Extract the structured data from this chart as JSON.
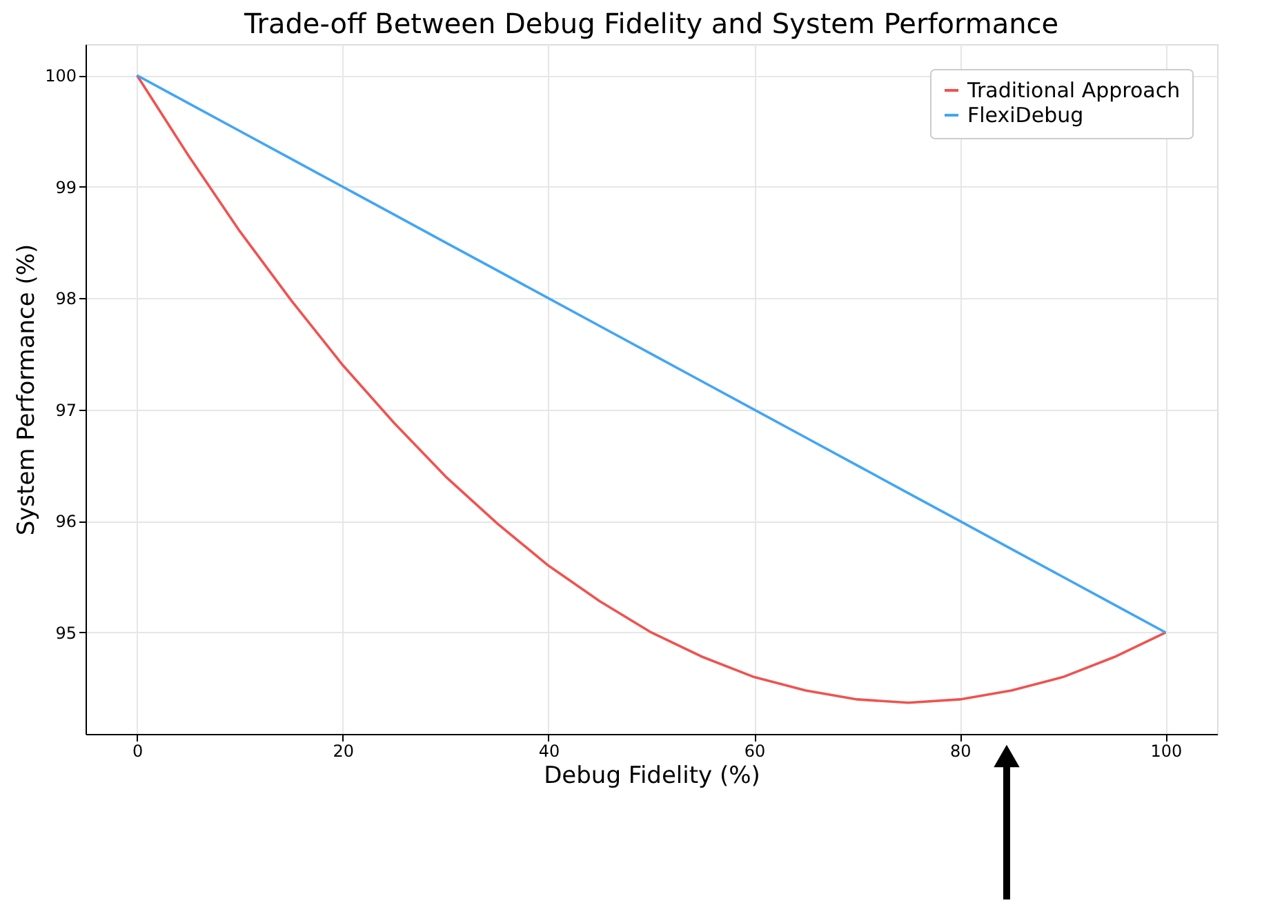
{
  "chart_data": {
    "type": "line",
    "title": "Trade-off Between Debug Fidelity and System Performance",
    "xlabel": "Debug Fidelity (%)",
    "ylabel": "System Performance (%)",
    "x": [
      0,
      5,
      10,
      15,
      20,
      25,
      30,
      35,
      40,
      45,
      50,
      55,
      60,
      65,
      70,
      75,
      80,
      85,
      90,
      95,
      100
    ],
    "series": [
      {
        "name": "Traditional Approach",
        "color": "#ef5350",
        "values": [
          100,
          99.28,
          98.6,
          97.98,
          97.4,
          96.88,
          96.4,
          95.98,
          95.6,
          95.28,
          95.0,
          94.78,
          94.6,
          94.48,
          94.4,
          94.37,
          94.4,
          94.48,
          94.6,
          94.78,
          95.0
        ]
      },
      {
        "name": "FlexiDebug",
        "color": "#42a5f5",
        "values": [
          100,
          99.75,
          99.5,
          99.25,
          99.0,
          98.75,
          98.5,
          98.25,
          98.0,
          97.75,
          97.5,
          97.25,
          97.0,
          96.75,
          96.5,
          96.25,
          96.0,
          95.75,
          95.5,
          95.25,
          95.0
        ]
      }
    ],
    "xlim": [
      -5,
      105
    ],
    "ylim": [
      94.09,
      100.28
    ],
    "xticks": [
      0,
      20,
      40,
      60,
      80,
      100
    ],
    "yticks": [
      95,
      96,
      97,
      98,
      99,
      100
    ],
    "grid": true,
    "legend": "top right",
    "marker": "none",
    "line_style": "solid"
  }
}
